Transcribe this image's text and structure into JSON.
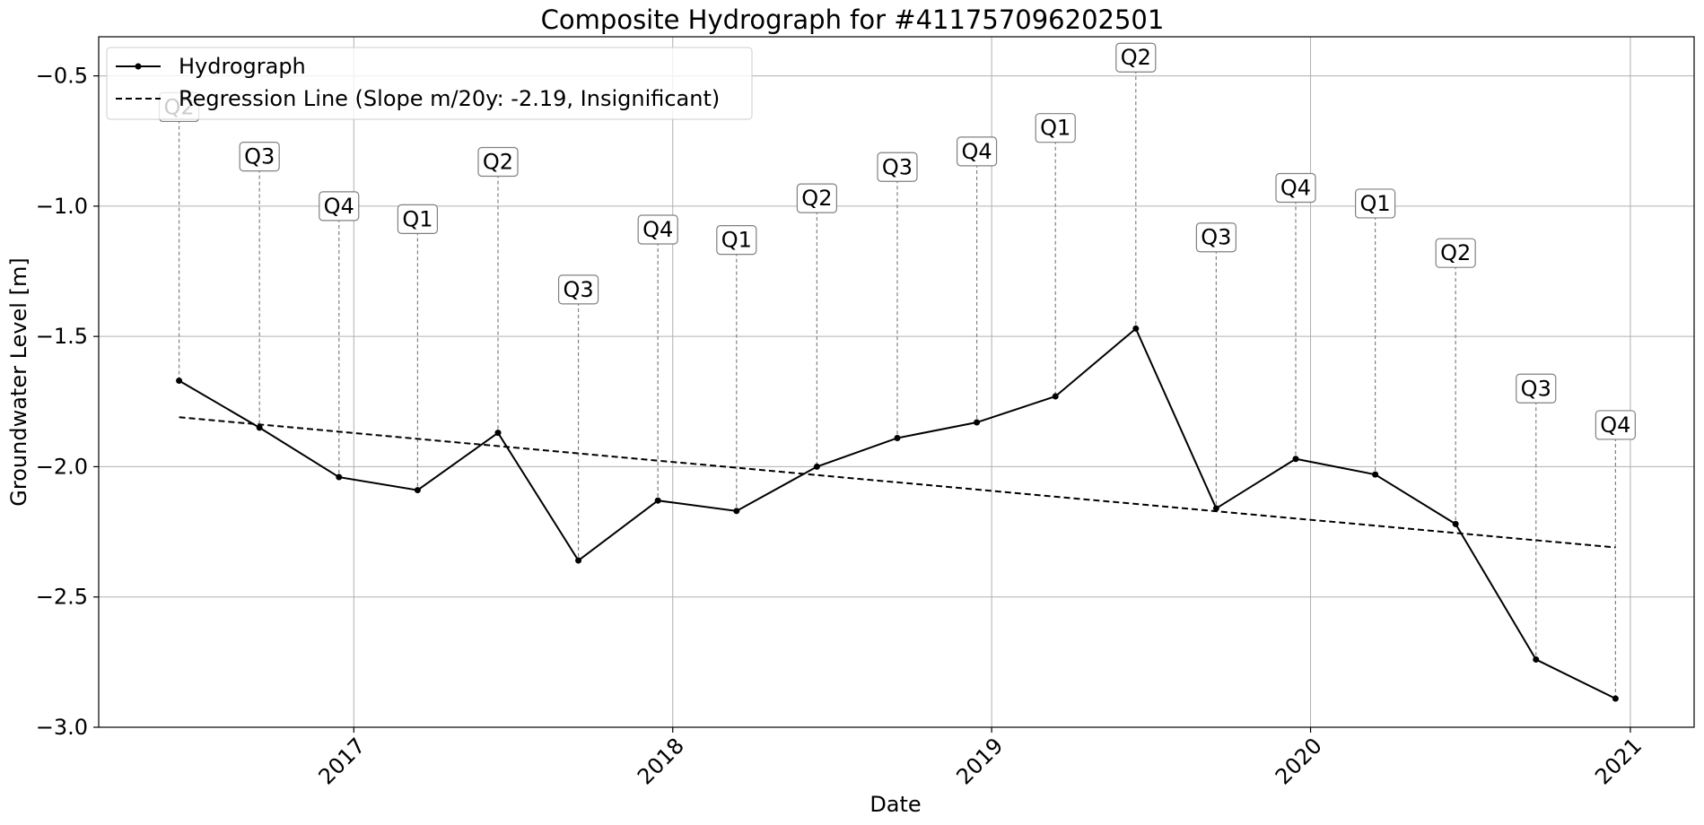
{
  "chart_data": {
    "type": "line",
    "title": "Composite Hydrograph for  #411757096202501",
    "xlabel": "Date",
    "ylabel": "Groundwater Level [m]",
    "ylim": [
      -3.0,
      -0.35
    ],
    "xlim": [
      "2016-03-15",
      "2021-03-15"
    ],
    "grid": true,
    "legend_position": "upper-left",
    "x_ticks": [
      "2017",
      "2018",
      "2019",
      "2020",
      "2021"
    ],
    "y_ticks": [
      "−0.5",
      "−1.0",
      "−1.5",
      "−2.0",
      "−2.5",
      "−3.0"
    ],
    "series": [
      {
        "name": "Hydrograph",
        "color": "#000000",
        "style": "solid-with-markers",
        "x": [
          "2016-06-15",
          "2016-09-15",
          "2016-12-15",
          "2017-03-15",
          "2017-06-15",
          "2017-09-15",
          "2017-12-15",
          "2018-03-15",
          "2018-06-15",
          "2018-09-15",
          "2018-12-15",
          "2019-03-15",
          "2019-06-15",
          "2019-09-15",
          "2019-12-15",
          "2020-03-15",
          "2020-06-15",
          "2020-09-15",
          "2020-12-15"
        ],
        "values": [
          -1.67,
          -1.85,
          -2.04,
          -2.09,
          -1.87,
          -2.36,
          -2.13,
          -2.17,
          -2.0,
          -1.89,
          -1.83,
          -1.73,
          -1.47,
          -2.16,
          -1.97,
          -2.03,
          -2.22,
          -2.74,
          -2.89
        ]
      },
      {
        "name": "Regression Line (Slope m/20y: -2.19, Insignificant)",
        "color": "#000000",
        "style": "dashed",
        "x": [
          "2016-06-15",
          "2020-12-15"
        ],
        "values": [
          -1.81,
          -2.31
        ]
      }
    ],
    "quarter_labels": [
      "Q2",
      "Q3",
      "Q4",
      "Q1",
      "Q2",
      "Q3",
      "Q4",
      "Q1",
      "Q2",
      "Q3",
      "Q4",
      "Q1",
      "Q2",
      "Q3",
      "Q4",
      "Q1",
      "Q2",
      "Q3",
      "Q4"
    ],
    "quarter_label_levels": [
      -0.62,
      -0.81,
      -1.0,
      -1.05,
      -0.83,
      -1.32,
      -1.09,
      -1.13,
      -0.97,
      -0.85,
      -0.79,
      -0.7,
      -0.43,
      -1.12,
      -0.93,
      -0.99,
      -1.18,
      -1.7,
      -1.84
    ]
  }
}
